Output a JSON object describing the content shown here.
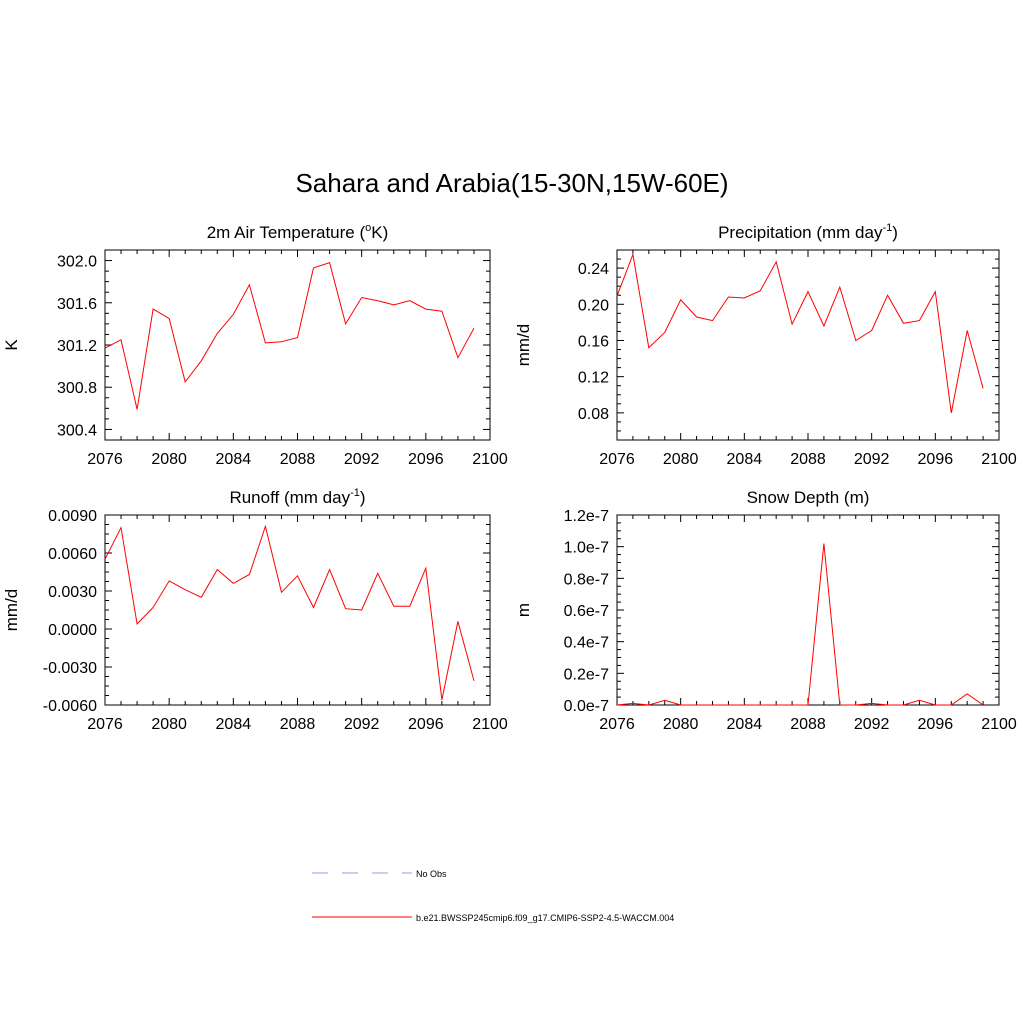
{
  "figure": {
    "title": "Sahara and Arabia(15-30N,15W-60E)",
    "line_color": "#ff0000",
    "obs_color": "#9999dd"
  },
  "legend": {
    "items": [
      {
        "label": "No Obs",
        "style": "dashed",
        "color": "#9999dd"
      },
      {
        "label": "b.e21.BWSSP245cmip6.f09_g17.CMIP6-SSP2-4.5-WACCM.004",
        "style": "solid",
        "color": "#ff0000"
      }
    ]
  },
  "chart_data": [
    {
      "type": "line",
      "title_main": "2m Air Temperature (",
      "title_sup": "o",
      "title_tail": "K)",
      "ylabel": "K",
      "xlim": [
        2076,
        2100
      ],
      "ylim": [
        300.3,
        302.1
      ],
      "xticks": [
        "2076",
        "2080",
        "2084",
        "2088",
        "2092",
        "2096",
        "2100"
      ],
      "yticks": [
        "300.4",
        "300.8",
        "301.2",
        "301.6",
        "302.0"
      ],
      "series": [
        {
          "x": [
            2076,
            2077,
            2078,
            2079,
            2080,
            2081,
            2082,
            2083,
            2084,
            2085,
            2086,
            2087,
            2088,
            2089,
            2090,
            2091,
            2092,
            2093,
            2094,
            2095,
            2096,
            2097,
            2098,
            2099
          ],
          "values": [
            301.17,
            301.25,
            300.59,
            301.54,
            301.45,
            300.85,
            301.05,
            301.31,
            301.49,
            301.77,
            301.22,
            301.23,
            301.27,
            301.93,
            301.98,
            301.4,
            301.65,
            301.62,
            301.58,
            301.62,
            301.54,
            301.52,
            301.08,
            301.36
          ]
        }
      ]
    },
    {
      "type": "line",
      "title_main": "Precipitation (mm day",
      "title_sup": "-1",
      "title_tail": ")",
      "ylabel": "mm/d",
      "xlim": [
        2076,
        2100
      ],
      "ylim": [
        0.05,
        0.26
      ],
      "xticks": [
        "2076",
        "2080",
        "2084",
        "2088",
        "2092",
        "2096",
        "2100"
      ],
      "yticks": [
        "0.08",
        "0.12",
        "0.16",
        "0.20",
        "0.24"
      ],
      "series": [
        {
          "x": [
            2076,
            2077,
            2078,
            2079,
            2080,
            2081,
            2082,
            2083,
            2084,
            2085,
            2086,
            2087,
            2088,
            2089,
            2090,
            2091,
            2092,
            2093,
            2094,
            2095,
            2096,
            2097,
            2098,
            2099
          ],
          "values": [
            0.209,
            0.255,
            0.152,
            0.169,
            0.205,
            0.186,
            0.182,
            0.208,
            0.207,
            0.215,
            0.247,
            0.178,
            0.214,
            0.176,
            0.219,
            0.16,
            0.171,
            0.21,
            0.179,
            0.182,
            0.214,
            0.08,
            0.171,
            0.107
          ]
        }
      ]
    },
    {
      "type": "line",
      "title_main": "Runoff (mm day",
      "title_sup": "-1",
      "title_tail": ")",
      "ylabel": "mm/d",
      "xlim": [
        2076,
        2100
      ],
      "ylim": [
        -0.006,
        0.009
      ],
      "xticks": [
        "2076",
        "2080",
        "2084",
        "2088",
        "2092",
        "2096",
        "2100"
      ],
      "yticks": [
        "-0.0060",
        "-0.0030",
        "0.0000",
        "0.0030",
        "0.0060",
        "0.0090"
      ],
      "series": [
        {
          "x": [
            2076,
            2077,
            2078,
            2079,
            2080,
            2081,
            2082,
            2083,
            2084,
            2085,
            2086,
            2087,
            2088,
            2089,
            2090,
            2091,
            2092,
            2093,
            2094,
            2095,
            2096,
            2097,
            2098,
            2099
          ],
          "values": [
            0.0055,
            0.008,
            0.0004,
            0.0017,
            0.0038,
            0.0031,
            0.0025,
            0.0047,
            0.0036,
            0.0043,
            0.0081,
            0.0029,
            0.0042,
            0.0017,
            0.0047,
            0.0016,
            0.0015,
            0.0044,
            0.0018,
            0.0018,
            0.0048,
            -0.0056,
            0.0006,
            -0.0041
          ]
        }
      ]
    },
    {
      "type": "line",
      "title_main": "Snow Depth (m)",
      "title_sup": "",
      "title_tail": "",
      "ylabel": "m",
      "xlim": [
        2076,
        2100
      ],
      "ylim": [
        0,
        1.2e-07
      ],
      "xticks": [
        "2076",
        "2080",
        "2084",
        "2088",
        "2092",
        "2096",
        "2100"
      ],
      "yticks": [
        "0.0e-7",
        "0.2e-7",
        "0.4e-7",
        "0.6e-7",
        "0.8e-7",
        "1.0e-7",
        "1.2e-7"
      ],
      "series": [
        {
          "x": [
            2076,
            2077,
            2078,
            2079,
            2080,
            2081,
            2082,
            2083,
            2084,
            2085,
            2086,
            2087,
            2088,
            2089,
            2090,
            2091,
            2092,
            2093,
            2094,
            2095,
            2096,
            2097,
            2098,
            2099
          ],
          "values": [
            0,
            1e-09,
            0,
            3e-09,
            0,
            0,
            0,
            0,
            0,
            0,
            0,
            0,
            0,
            1.02e-07,
            0,
            0,
            1e-09,
            0,
            0,
            3e-09,
            0,
            0,
            7e-09,
            0
          ]
        }
      ]
    }
  ]
}
